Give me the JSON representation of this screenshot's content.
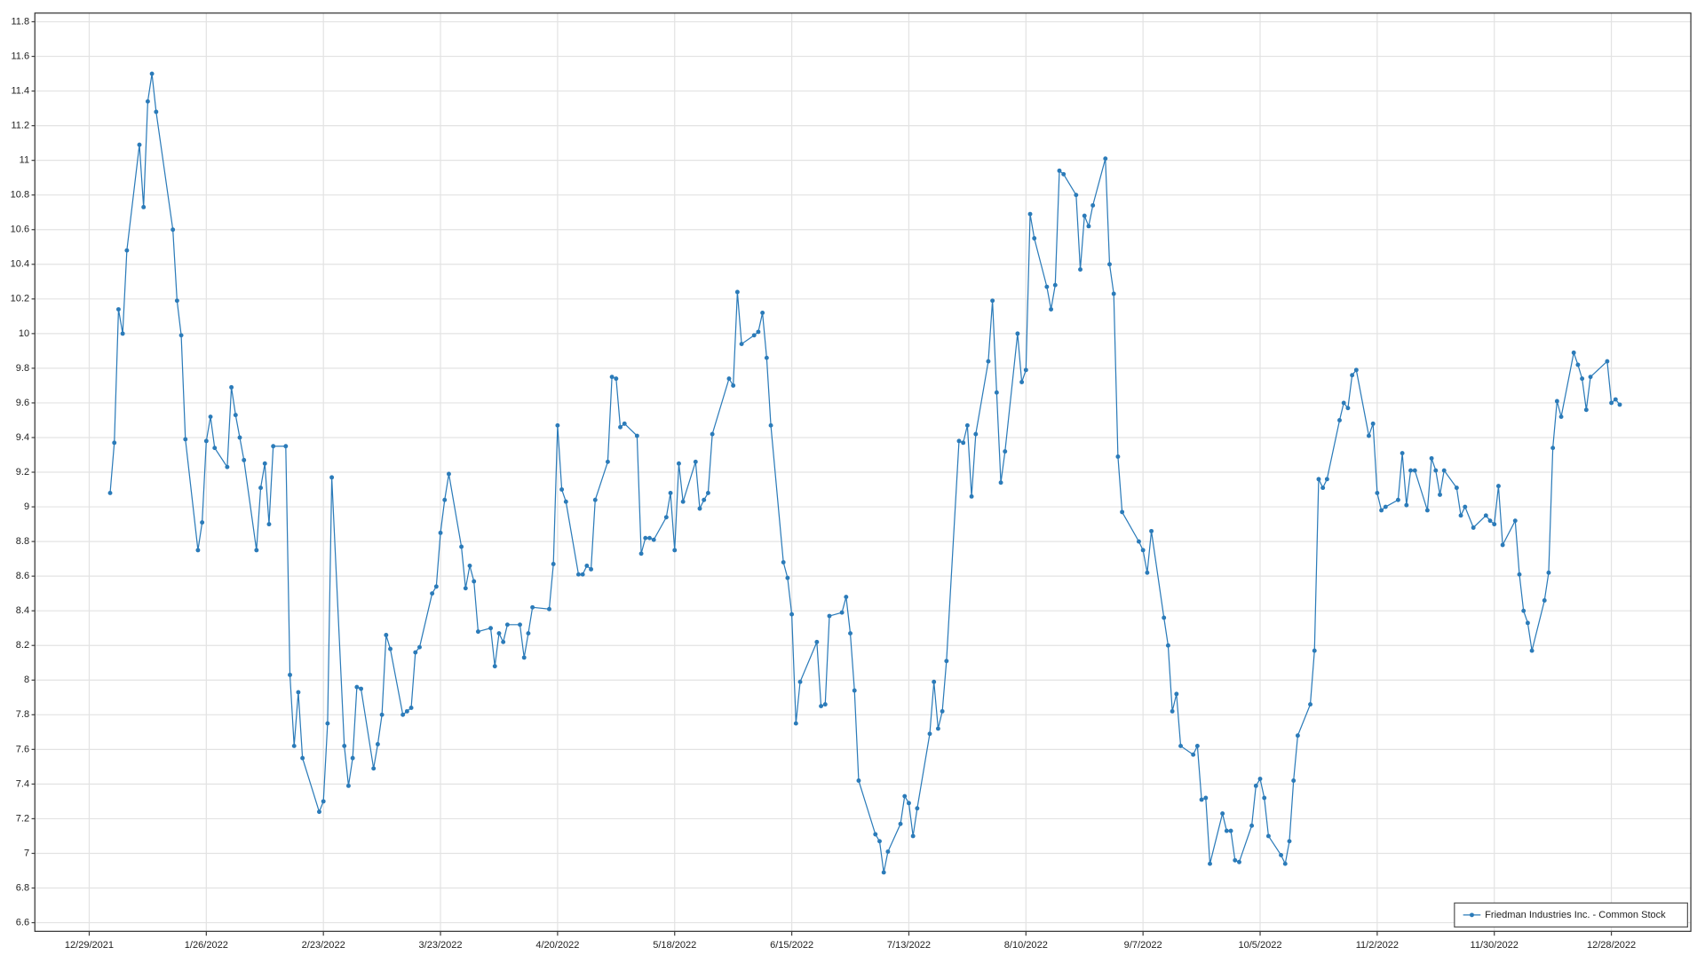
{
  "chart_data": {
    "type": "line",
    "x": [
      "2022-01-03",
      "2022-01-04",
      "2022-01-05",
      "2022-01-06",
      "2022-01-07",
      "2022-01-10",
      "2022-01-11",
      "2022-01-12",
      "2022-01-13",
      "2022-01-14",
      "2022-01-18",
      "2022-01-19",
      "2022-01-20",
      "2022-01-21",
      "2022-01-24",
      "2022-01-25",
      "2022-01-26",
      "2022-01-27",
      "2022-01-28",
      "2022-01-31",
      "2022-02-01",
      "2022-02-02",
      "2022-02-03",
      "2022-02-04",
      "2022-02-07",
      "2022-02-08",
      "2022-02-09",
      "2022-02-10",
      "2022-02-11",
      "2022-02-14",
      "2022-02-15",
      "2022-02-16",
      "2022-02-17",
      "2022-02-18",
      "2022-02-22",
      "2022-02-23",
      "2022-02-24",
      "2022-02-25",
      "2022-02-28",
      "2022-03-01",
      "2022-03-02",
      "2022-03-03",
      "2022-03-04",
      "2022-03-07",
      "2022-03-08",
      "2022-03-09",
      "2022-03-10",
      "2022-03-11",
      "2022-03-14",
      "2022-03-15",
      "2022-03-16",
      "2022-03-17",
      "2022-03-18",
      "2022-03-21",
      "2022-03-22",
      "2022-03-23",
      "2022-03-24",
      "2022-03-25",
      "2022-03-28",
      "2022-03-29",
      "2022-03-30",
      "2022-03-31",
      "2022-04-01",
      "2022-04-04",
      "2022-04-05",
      "2022-04-06",
      "2022-04-07",
      "2022-04-08",
      "2022-04-11",
      "2022-04-12",
      "2022-04-13",
      "2022-04-14",
      "2022-04-18",
      "2022-04-19",
      "2022-04-20",
      "2022-04-21",
      "2022-04-22",
      "2022-04-25",
      "2022-04-26",
      "2022-04-27",
      "2022-04-28",
      "2022-04-29",
      "2022-05-02",
      "2022-05-03",
      "2022-05-04",
      "2022-05-05",
      "2022-05-06",
      "2022-05-09",
      "2022-05-10",
      "2022-05-11",
      "2022-05-12",
      "2022-05-13",
      "2022-05-16",
      "2022-05-17",
      "2022-05-18",
      "2022-05-19",
      "2022-05-20",
      "2022-05-23",
      "2022-05-24",
      "2022-05-25",
      "2022-05-26",
      "2022-05-27",
      "2022-05-31",
      "2022-06-01",
      "2022-06-02",
      "2022-06-03",
      "2022-06-06",
      "2022-06-07",
      "2022-06-08",
      "2022-06-09",
      "2022-06-10",
      "2022-06-13",
      "2022-06-14",
      "2022-06-15",
      "2022-06-16",
      "2022-06-17",
      "2022-06-21",
      "2022-06-22",
      "2022-06-23",
      "2022-06-24",
      "2022-06-27",
      "2022-06-28",
      "2022-06-29",
      "2022-06-30",
      "2022-07-01",
      "2022-07-05",
      "2022-07-06",
      "2022-07-07",
      "2022-07-08",
      "2022-07-11",
      "2022-07-12",
      "2022-07-13",
      "2022-07-14",
      "2022-07-15",
      "2022-07-18",
      "2022-07-19",
      "2022-07-20",
      "2022-07-21",
      "2022-07-22",
      "2022-07-25",
      "2022-07-26",
      "2022-07-27",
      "2022-07-28",
      "2022-07-29",
      "2022-08-01",
      "2022-08-02",
      "2022-08-03",
      "2022-08-04",
      "2022-08-05",
      "2022-08-08",
      "2022-08-09",
      "2022-08-10",
      "2022-08-11",
      "2022-08-12",
      "2022-08-15",
      "2022-08-16",
      "2022-08-17",
      "2022-08-18",
      "2022-08-19",
      "2022-08-22",
      "2022-08-23",
      "2022-08-24",
      "2022-08-25",
      "2022-08-26",
      "2022-08-29",
      "2022-08-30",
      "2022-08-31",
      "2022-09-01",
      "2022-09-02",
      "2022-09-06",
      "2022-09-07",
      "2022-09-08",
      "2022-09-09",
      "2022-09-12",
      "2022-09-13",
      "2022-09-14",
      "2022-09-15",
      "2022-09-16",
      "2022-09-19",
      "2022-09-20",
      "2022-09-21",
      "2022-09-22",
      "2022-09-23",
      "2022-09-26",
      "2022-09-27",
      "2022-09-28",
      "2022-09-29",
      "2022-09-30",
      "2022-10-03",
      "2022-10-04",
      "2022-10-05",
      "2022-10-06",
      "2022-10-07",
      "2022-10-10",
      "2022-10-11",
      "2022-10-12",
      "2022-10-13",
      "2022-10-14",
      "2022-10-17",
      "2022-10-18",
      "2022-10-19",
      "2022-10-20",
      "2022-10-21",
      "2022-10-24",
      "2022-10-25",
      "2022-10-26",
      "2022-10-27",
      "2022-10-28",
      "2022-10-31",
      "2022-11-01",
      "2022-11-02",
      "2022-11-03",
      "2022-11-04",
      "2022-11-07",
      "2022-11-08",
      "2022-11-09",
      "2022-11-10",
      "2022-11-11",
      "2022-11-14",
      "2022-11-15",
      "2022-11-16",
      "2022-11-17",
      "2022-11-18",
      "2022-11-21",
      "2022-11-22",
      "2022-11-23",
      "2022-11-25",
      "2022-11-28",
      "2022-11-29",
      "2022-11-30",
      "2022-12-01",
      "2022-12-02",
      "2022-12-05",
      "2022-12-06",
      "2022-12-07",
      "2022-12-08",
      "2022-12-09",
      "2022-12-12",
      "2022-12-13",
      "2022-12-14",
      "2022-12-15",
      "2022-12-16",
      "2022-12-19",
      "2022-12-20",
      "2022-12-21",
      "2022-12-22",
      "2022-12-23",
      "2022-12-27",
      "2022-12-28",
      "2022-12-29",
      "2022-12-30"
    ],
    "series": [
      {
        "name": "Friedman Industries Inc. - Common Stock",
        "color": "#2b7bb9",
        "values": [
          9.08,
          9.37,
          10.14,
          10.0,
          10.48,
          11.09,
          10.73,
          11.34,
          11.5,
          11.28,
          10.6,
          10.19,
          9.99,
          9.39,
          8.75,
          8.91,
          9.38,
          9.52,
          9.34,
          9.23,
          9.69,
          9.53,
          9.4,
          9.27,
          8.75,
          9.11,
          9.25,
          8.9,
          9.35,
          9.35,
          8.03,
          7.62,
          7.93,
          7.55,
          7.24,
          7.3,
          7.75,
          9.17,
          7.62,
          7.39,
          7.55,
          7.96,
          7.95,
          7.49,
          7.63,
          7.8,
          8.26,
          8.18,
          7.8,
          7.82,
          7.84,
          8.16,
          8.19,
          8.5,
          8.54,
          8.85,
          9.04,
          9.19,
          8.77,
          8.53,
          8.66,
          8.57,
          8.28,
          8.3,
          8.08,
          8.27,
          8.22,
          8.32,
          8.32,
          8.13,
          8.27,
          8.42,
          8.41,
          8.67,
          9.47,
          9.1,
          9.03,
          8.61,
          8.61,
          8.66,
          8.64,
          9.04,
          9.26,
          9.75,
          9.74,
          9.46,
          9.48,
          9.41,
          8.73,
          8.82,
          8.82,
          8.81,
          8.94,
          9.08,
          8.75,
          9.25,
          9.03,
          9.26,
          8.99,
          9.04,
          9.08,
          9.42,
          9.74,
          9.7,
          10.24,
          9.94,
          9.99,
          10.01,
          10.12,
          9.86,
          9.47,
          8.68,
          8.59,
          8.38,
          7.75,
          7.99,
          8.22,
          7.85,
          7.86,
          8.37,
          8.39,
          8.48,
          8.27,
          7.94,
          7.42,
          7.11,
          7.07,
          6.89,
          7.01,
          7.17,
          7.33,
          7.29,
          7.1,
          7.26,
          7.69,
          7.99,
          7.72,
          7.82,
          8.11,
          9.38,
          9.37,
          9.47,
          9.06,
          9.42,
          9.84,
          10.19,
          9.66,
          9.14,
          9.32,
          10.0,
          9.72,
          9.79,
          10.69,
          10.55,
          10.27,
          10.14,
          10.28,
          10.94,
          10.92,
          10.8,
          10.37,
          10.68,
          10.62,
          10.74,
          11.01,
          10.4,
          10.23,
          9.29,
          8.97,
          8.8,
          8.75,
          8.62,
          8.86,
          8.36,
          8.2,
          7.82,
          7.92,
          7.62,
          7.57,
          7.62,
          7.31,
          7.32,
          6.94,
          7.23,
          7.13,
          7.13,
          6.96,
          6.95,
          7.16,
          7.39,
          7.43,
          7.32,
          7.1,
          6.99,
          6.94,
          7.07,
          7.42,
          7.68,
          7.86,
          8.17,
          9.16,
          9.11,
          9.16,
          9.5,
          9.6,
          9.57,
          9.76,
          9.79,
          9.41,
          9.48,
          9.08,
          8.98,
          9.0,
          9.04,
          9.31,
          9.01,
          9.21,
          9.21,
          8.98,
          9.28,
          9.21,
          9.07,
          9.21,
          9.11,
          8.95,
          9.0,
          8.88,
          8.95,
          8.92,
          8.9,
          9.12,
          8.78,
          8.92,
          8.61,
          8.4,
          8.33,
          8.17,
          8.46,
          8.62,
          9.34,
          9.61,
          9.52,
          9.89,
          9.82,
          9.74,
          9.56,
          9.75,
          9.84,
          9.6,
          9.62,
          9.59
        ]
      }
    ],
    "xlim": [
      "2021-12-16",
      "2023-01-16"
    ],
    "xticks": [
      {
        "value": "2021-12-29",
        "label": "12/29/2021"
      },
      {
        "value": "2022-01-26",
        "label": "1/26/2022"
      },
      {
        "value": "2022-02-23",
        "label": "2/23/2022"
      },
      {
        "value": "2022-03-23",
        "label": "3/23/2022"
      },
      {
        "value": "2022-04-20",
        "label": "4/20/2022"
      },
      {
        "value": "2022-05-18",
        "label": "5/18/2022"
      },
      {
        "value": "2022-06-15",
        "label": "6/15/2022"
      },
      {
        "value": "2022-07-13",
        "label": "7/13/2022"
      },
      {
        "value": "2022-08-10",
        "label": "8/10/2022"
      },
      {
        "value": "2022-09-07",
        "label": "9/7/2022"
      },
      {
        "value": "2022-10-05",
        "label": "10/5/2022"
      },
      {
        "value": "2022-11-02",
        "label": "11/2/2022"
      },
      {
        "value": "2022-11-30",
        "label": "11/30/2022"
      },
      {
        "value": "2022-12-28",
        "label": "12/28/2022"
      }
    ],
    "ylim": [
      6.55,
      11.85
    ],
    "yticks": [
      6.6,
      6.8,
      7,
      7.2,
      7.4,
      7.6,
      7.8,
      8,
      8.2,
      8.4,
      8.6,
      8.8,
      9,
      9.2,
      9.4,
      9.6,
      9.8,
      10,
      10.2,
      10.4,
      10.6,
      10.8,
      11,
      11.2,
      11.4,
      11.6,
      11.8
    ],
    "grid": true,
    "legend_position": "lower right"
  }
}
